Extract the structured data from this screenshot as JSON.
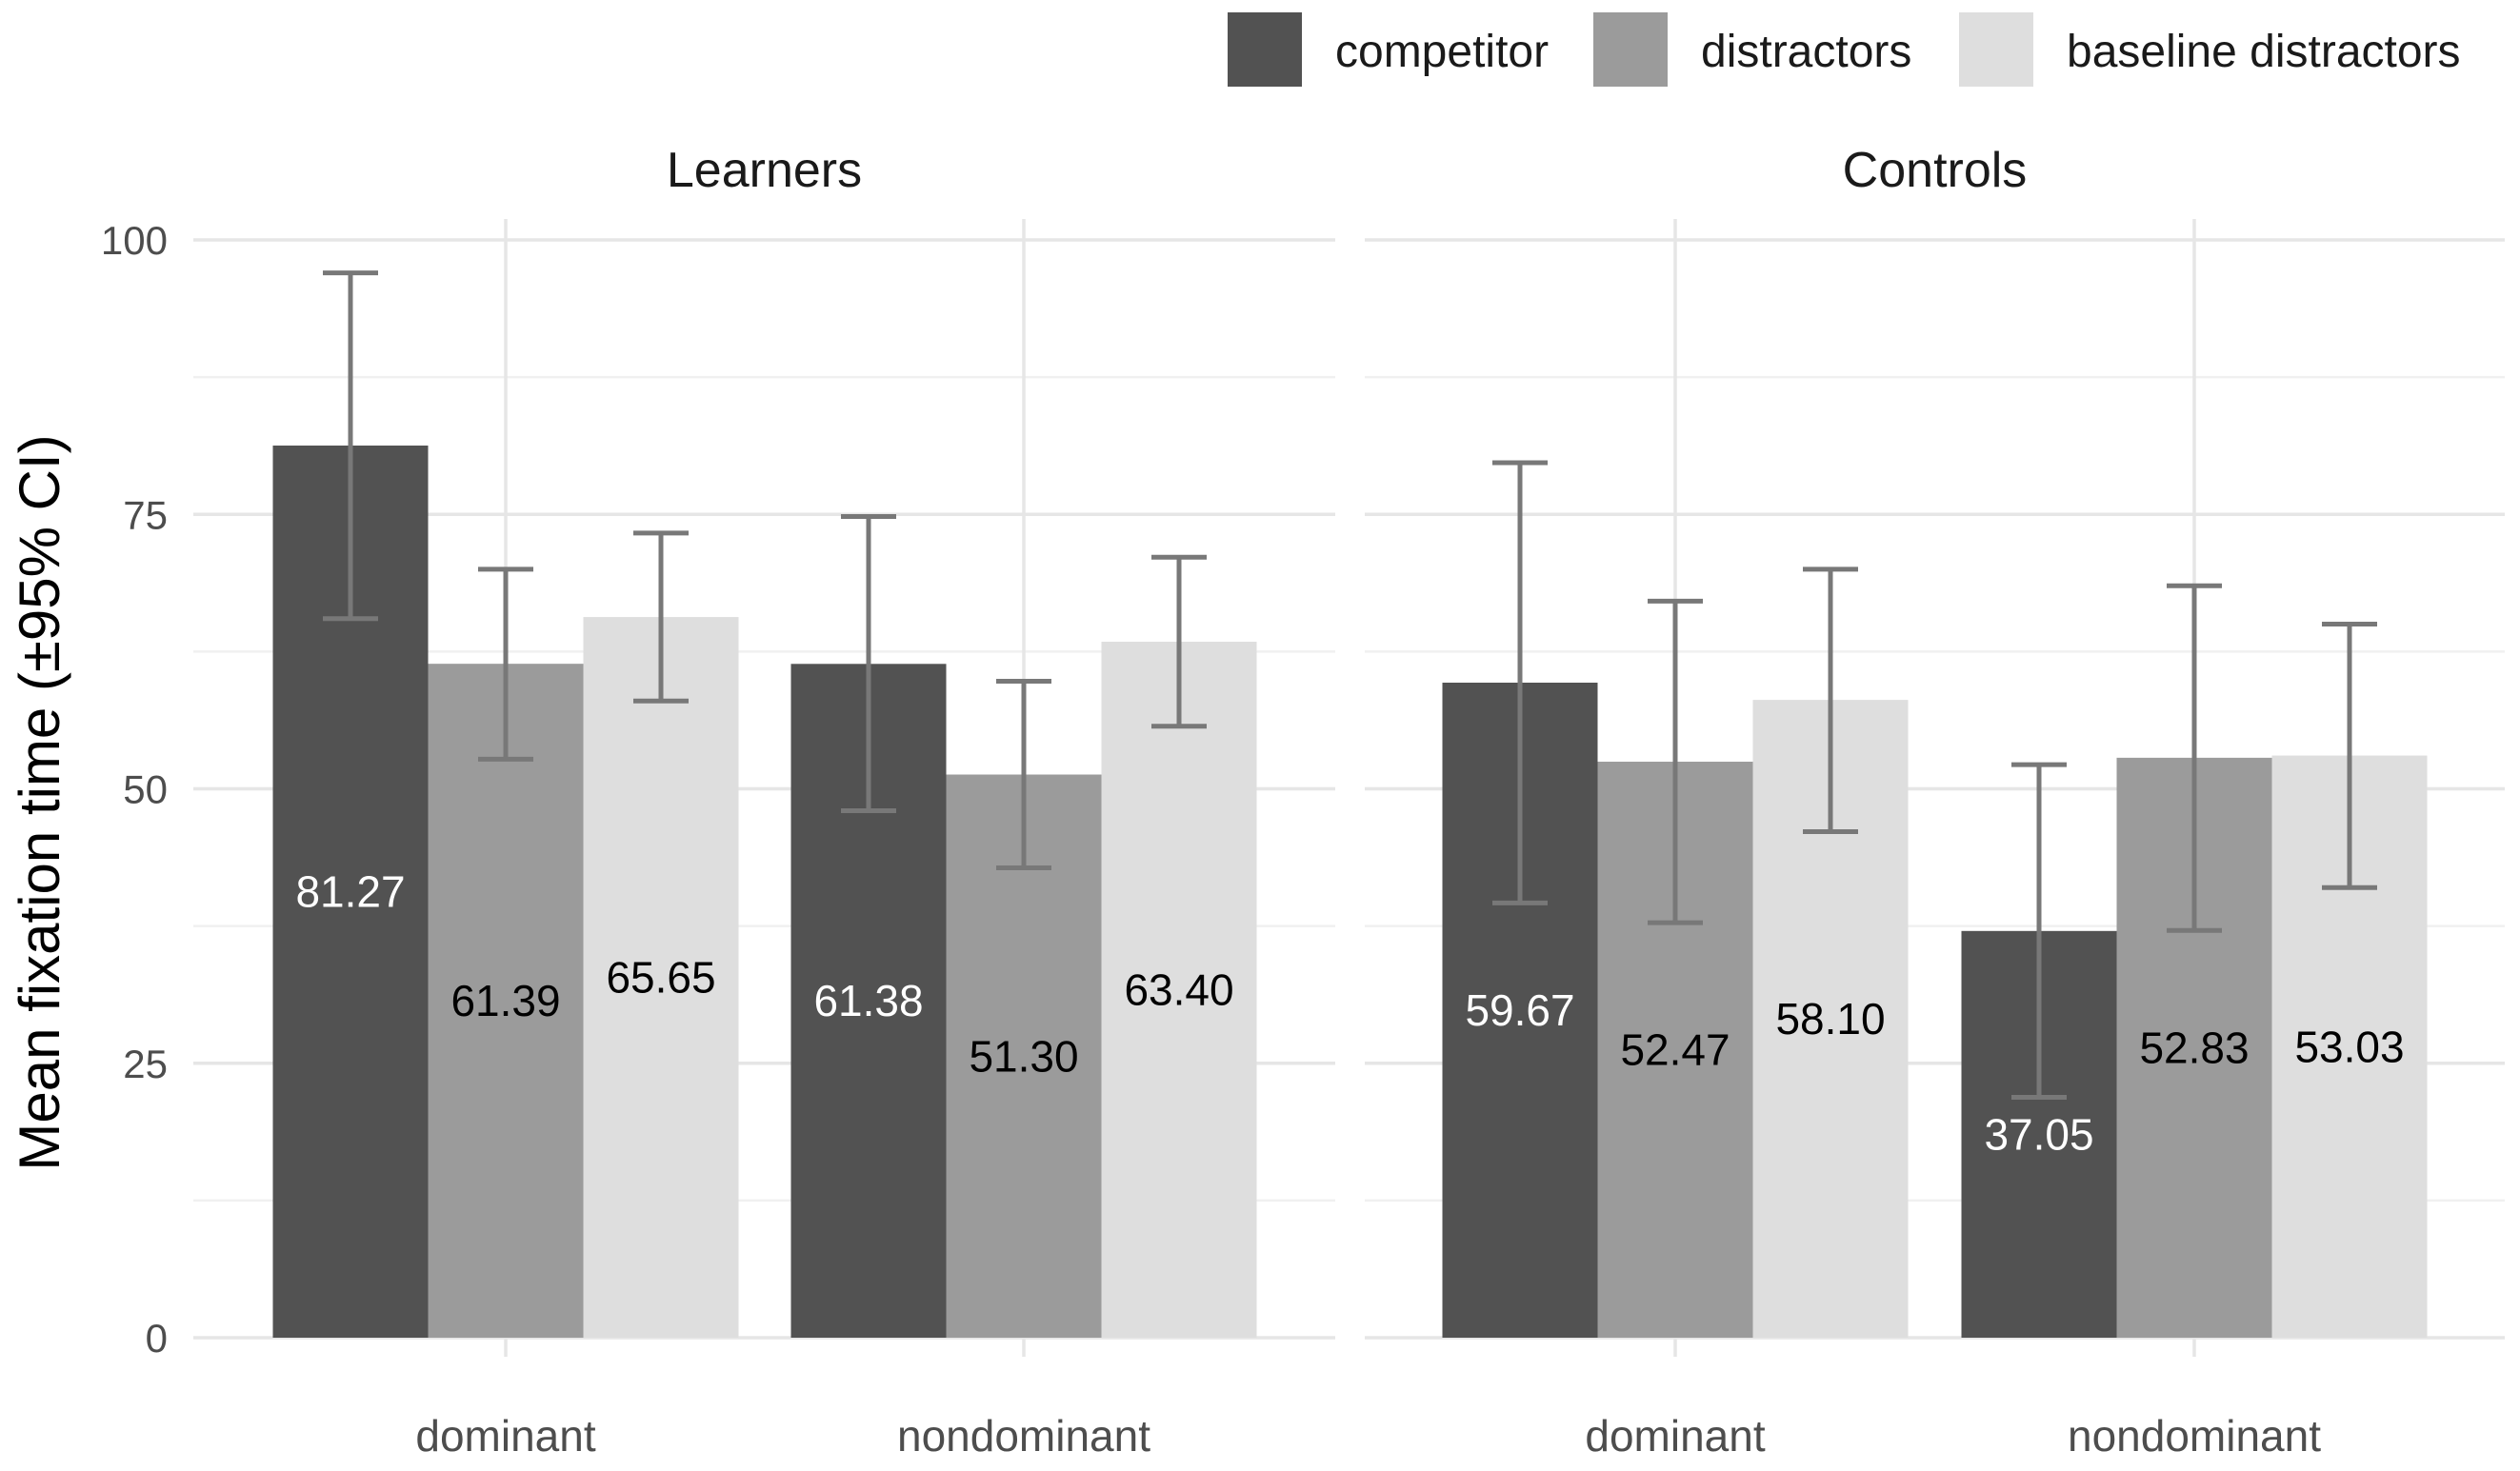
{
  "chart_data": {
    "type": "bar",
    "ylabel": "Mean fixation time (±95% CI)",
    "ylim": [
      0,
      100
    ],
    "yticks": [
      "0",
      "25",
      "50",
      "75",
      "100"
    ],
    "legend": {
      "position": "top-right",
      "entries": [
        {
          "name": "competitor",
          "color": "#525252"
        },
        {
          "name": "distractors",
          "color": "#9b9b9b"
        },
        {
          "name": "baseline distractors",
          "color": "#dedede"
        }
      ]
    },
    "label_colors": [
      "#ffffff",
      "#000000",
      "#000000"
    ],
    "grid": true,
    "panels": [
      {
        "title": "Learners",
        "categories": [
          "dominant",
          "nondominant"
        ],
        "series": [
          {
            "name": "competitor",
            "values": [
              81.27,
              61.38
            ],
            "values_label": [
              "81.27",
              "61.38"
            ],
            "ci_low": [
              65.5,
              48.0
            ],
            "ci_high": [
              97.0,
              74.8
            ]
          },
          {
            "name": "distractors",
            "values": [
              61.39,
              51.3
            ],
            "values_label": [
              "61.39",
              "51.30"
            ],
            "ci_low": [
              52.7,
              42.8
            ],
            "ci_high": [
              70.0,
              59.8
            ]
          },
          {
            "name": "baseline distractors",
            "values": [
              65.65,
              63.4
            ],
            "values_label": [
              "65.65",
              "63.40"
            ],
            "ci_low": [
              58.0,
              55.7
            ],
            "ci_high": [
              73.3,
              71.1
            ]
          }
        ]
      },
      {
        "title": "Controls",
        "categories": [
          "dominant",
          "nondominant"
        ],
        "series": [
          {
            "name": "competitor",
            "values": [
              59.67,
              37.05
            ],
            "values_label": [
              "59.67",
              "37.05"
            ],
            "ci_low": [
              39.6,
              21.9
            ],
            "ci_high": [
              79.7,
              52.2
            ]
          },
          {
            "name": "distractors",
            "values": [
              52.47,
              52.83
            ],
            "values_label": [
              "52.47",
              "52.83"
            ],
            "ci_low": [
              37.8,
              37.1
            ],
            "ci_high": [
              67.1,
              68.5
            ]
          },
          {
            "name": "baseline distractors",
            "values": [
              58.1,
              53.03
            ],
            "values_label": [
              "58.10",
              "53.03"
            ],
            "ci_low": [
              46.1,
              41.0
            ],
            "ci_high": [
              70.0,
              65.0
            ]
          }
        ]
      }
    ]
  }
}
